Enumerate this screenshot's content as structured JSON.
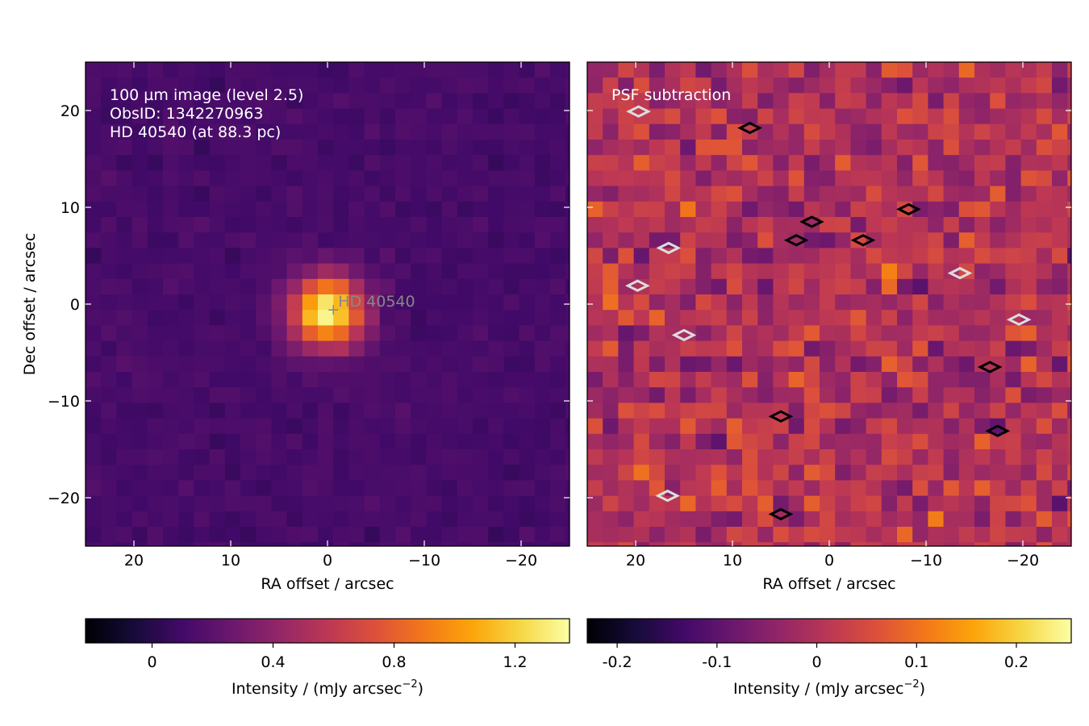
{
  "chart_data": [
    {
      "type": "heatmap",
      "title": "",
      "annotations": [
        "100 µm image (level 2.5)",
        "ObsID: 1342270963",
        "HD 40540 (at 88.3 pc)"
      ],
      "source_label": "HD 40540",
      "source_position": [
        -0.6,
        -0.6
      ],
      "xlabel": "RA offset / arcsec",
      "ylabel": "Dec offset / arcsec",
      "xlim": [
        25,
        -25
      ],
      "ylim": [
        -25,
        25
      ],
      "xticks": [
        20,
        10,
        0,
        -10,
        -20
      ],
      "xtick_labels": [
        "20",
        "10",
        "0",
        "−10",
        "−20"
      ],
      "yticks": [
        20,
        10,
        0,
        -10,
        -20
      ],
      "ytick_labels": [
        "20",
        "10",
        "0",
        "−10",
        "−20"
      ],
      "pixel_size_arcsec": 1.6,
      "colormap": "inferno",
      "colorbar": {
        "label": "Intensity / (mJy arcsec",
        "label_exponent": "−2",
        "label_close": ")",
        "range": [
          -0.22,
          1.38
        ],
        "ticks": [
          0,
          0.4,
          0.8,
          1.2
        ],
        "tick_labels": [
          "0",
          "0.4",
          "0.8",
          "1.2"
        ],
        "orientation": "horizontal"
      },
      "peak_intensity": 1.35,
      "peak_position": [
        0,
        -0.8
      ],
      "background_level": 0.12
    },
    {
      "type": "heatmap",
      "title": "",
      "annotations": [
        "PSF subtraction"
      ],
      "xlabel": "RA offset / arcsec",
      "xlim": [
        25,
        -25
      ],
      "ylim": [
        -25,
        25
      ],
      "xticks": [
        20,
        10,
        0,
        -10,
        -20
      ],
      "xtick_labels": [
        "20",
        "10",
        "0",
        "−10",
        "−20"
      ],
      "pixel_size_arcsec": 1.6,
      "colormap": "inferno",
      "colorbar": {
        "label": "Intensity / (mJy arcsec",
        "label_exponent": "−2",
        "label_close": ")",
        "range": [
          -0.23,
          0.255
        ],
        "ticks": [
          -0.2,
          -0.1,
          0,
          0.1,
          0.2
        ],
        "tick_labels": [
          "-0.2",
          "-0.1",
          "0",
          "0.1",
          "0.2"
        ],
        "orientation": "horizontal"
      },
      "residual_level": 0.0,
      "contours": [
        {
          "level": "positive",
          "color": "#000000",
          "centers": [
            [
              8.2,
              18.2
            ],
            [
              -8.2,
              9.8
            ],
            [
              1.8,
              8.5
            ],
            [
              3.4,
              6.6
            ],
            [
              -3.5,
              6.6
            ],
            [
              -16.6,
              -6.5
            ],
            [
              5,
              -11.6
            ],
            [
              -17.4,
              -13.1
            ],
            [
              5,
              -21.7
            ]
          ]
        },
        {
          "level": "negative",
          "color": "#dddddd",
          "centers": [
            [
              19.7,
              19.9
            ],
            [
              16.6,
              5.8
            ],
            [
              19.8,
              1.9
            ],
            [
              -13.5,
              3.2
            ],
            [
              -19.6,
              -1.6
            ],
            [
              15,
              -3.2
            ],
            [
              16.7,
              -19.8
            ]
          ]
        }
      ]
    }
  ]
}
